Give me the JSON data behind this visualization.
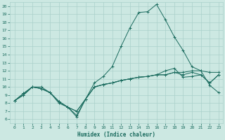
{
  "xlabel": "Humidex (Indice chaleur)",
  "xlim": [
    -0.5,
    23.5
  ],
  "ylim": [
    5.5,
    20.5
  ],
  "xticks": [
    0,
    1,
    2,
    3,
    4,
    5,
    6,
    7,
    8,
    9,
    10,
    11,
    12,
    13,
    14,
    15,
    16,
    17,
    18,
    19,
    20,
    21,
    22,
    23
  ],
  "yticks": [
    6,
    7,
    8,
    9,
    10,
    11,
    12,
    13,
    14,
    15,
    16,
    17,
    18,
    19,
    20
  ],
  "bg_color": "#cce8e2",
  "grid_color": "#aad0ca",
  "line_color": "#1a6b5e",
  "curves": [
    {
      "x": [
        0,
        1,
        2,
        3,
        4,
        5,
        6,
        7,
        8,
        9,
        10,
        11,
        12,
        13,
        14,
        15,
        16,
        17,
        18,
        19,
        20,
        21,
        22,
        23
      ],
      "y": [
        8.3,
        9.2,
        10.0,
        10.0,
        9.3,
        8.0,
        7.5,
        6.3,
        8.5,
        10.5,
        11.3,
        12.5,
        15.0,
        17.3,
        19.2,
        19.3,
        20.2,
        18.3,
        16.2,
        14.5,
        12.5,
        12.0,
        11.8,
        11.8
      ]
    },
    {
      "x": [
        0,
        1,
        2,
        3,
        4,
        5,
        6,
        7,
        8,
        9,
        10,
        11,
        12,
        13,
        14,
        15,
        16,
        17,
        18,
        19,
        20,
        21,
        22,
        23
      ],
      "y": [
        8.3,
        9.2,
        10.0,
        9.8,
        9.3,
        8.2,
        7.5,
        6.5,
        8.5,
        10.0,
        10.3,
        10.5,
        10.8,
        11.0,
        11.2,
        11.3,
        11.5,
        11.5,
        11.8,
        11.8,
        12.0,
        12.0,
        10.2,
        9.3
      ]
    },
    {
      "x": [
        0,
        1,
        2,
        3,
        4,
        5,
        6,
        7,
        8,
        9,
        10,
        11,
        12,
        13,
        14,
        15,
        16,
        17,
        18,
        19,
        20,
        21,
        22,
        23
      ],
      "y": [
        8.3,
        9.0,
        10.0,
        9.8,
        9.3,
        8.2,
        7.5,
        7.0,
        8.5,
        10.0,
        10.3,
        10.5,
        10.8,
        11.0,
        11.2,
        11.3,
        11.5,
        11.5,
        11.8,
        11.5,
        11.8,
        11.5,
        10.5,
        11.5
      ]
    },
    {
      "x": [
        0,
        1,
        2,
        3,
        4,
        5,
        6,
        7,
        8,
        9,
        10,
        11,
        12,
        13,
        14,
        15,
        16,
        17,
        18,
        19,
        20,
        21,
        22,
        23
      ],
      "y": [
        8.3,
        9.0,
        10.0,
        9.8,
        9.3,
        8.2,
        7.5,
        7.0,
        8.5,
        10.0,
        10.3,
        10.5,
        10.8,
        11.0,
        11.2,
        11.3,
        11.5,
        12.0,
        12.3,
        11.2,
        11.3,
        11.5,
        10.5,
        11.5
      ]
    }
  ]
}
